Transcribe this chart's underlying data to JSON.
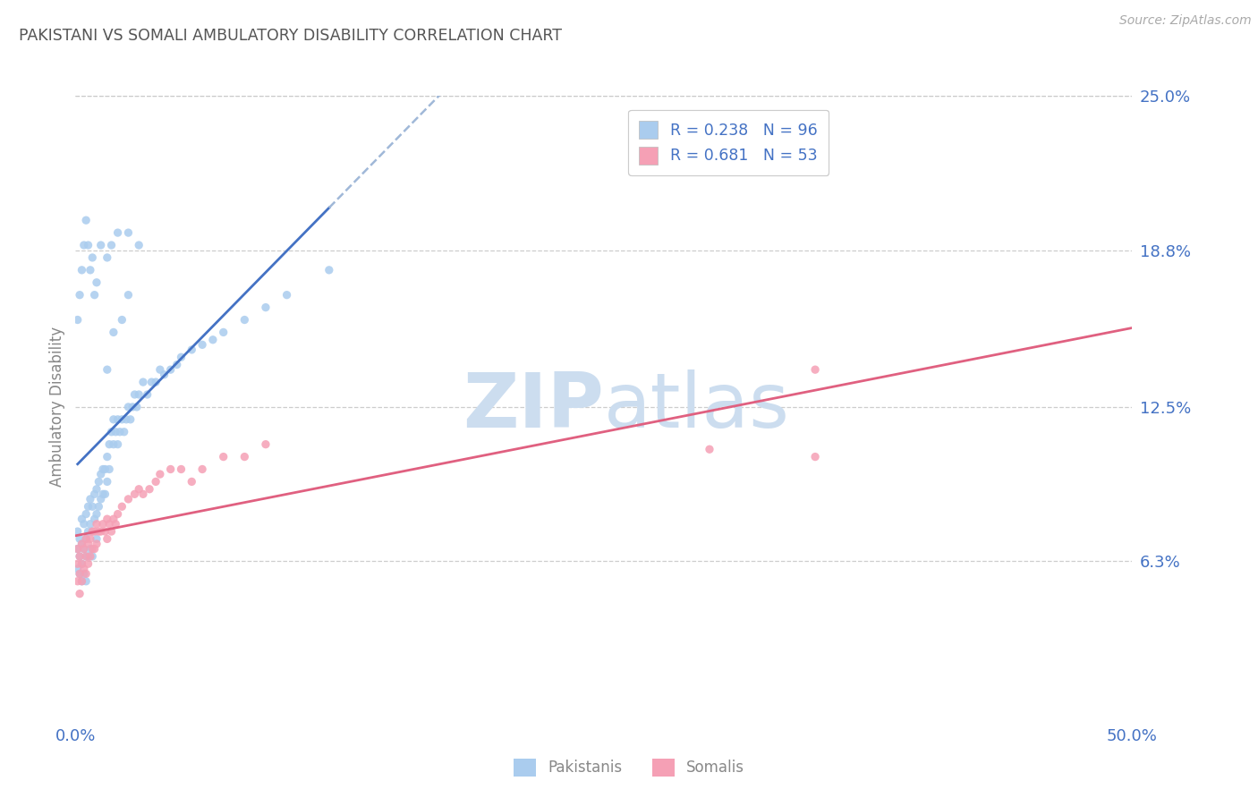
{
  "title": "PAKISTANI VS SOMALI AMBULATORY DISABILITY CORRELATION CHART",
  "source_text": "Source: ZipAtlas.com",
  "ylabel": "Ambulatory Disability",
  "xlim": [
    0.0,
    0.5
  ],
  "ylim": [
    0.0,
    0.25
  ],
  "pakistani_R": 0.238,
  "pakistani_N": 96,
  "somali_R": 0.681,
  "somali_N": 53,
  "blue_scatter_color": "#aaccee",
  "pink_scatter_color": "#f5a0b5",
  "blue_line_color": "#4472c4",
  "pink_line_color": "#e06080",
  "dashed_line_color": "#a0b8d8",
  "axis_tick_color": "#4472c4",
  "title_color": "#555555",
  "grid_color": "#c8c8c8",
  "watermark_color": "#ccddef",
  "background_color": "#ffffff",
  "pakistani_x": [
    0.001,
    0.001,
    0.001,
    0.002,
    0.002,
    0.002,
    0.003,
    0.003,
    0.003,
    0.003,
    0.004,
    0.004,
    0.004,
    0.005,
    0.005,
    0.005,
    0.005,
    0.006,
    0.006,
    0.006,
    0.007,
    0.007,
    0.007,
    0.008,
    0.008,
    0.008,
    0.009,
    0.009,
    0.01,
    0.01,
    0.01,
    0.011,
    0.011,
    0.012,
    0.012,
    0.013,
    0.013,
    0.014,
    0.014,
    0.015,
    0.015,
    0.016,
    0.016,
    0.017,
    0.018,
    0.018,
    0.019,
    0.02,
    0.02,
    0.021,
    0.022,
    0.023,
    0.024,
    0.025,
    0.026,
    0.027,
    0.028,
    0.029,
    0.03,
    0.032,
    0.034,
    0.036,
    0.038,
    0.04,
    0.042,
    0.045,
    0.048,
    0.05,
    0.055,
    0.06,
    0.065,
    0.07,
    0.08,
    0.09,
    0.1,
    0.12,
    0.015,
    0.018,
    0.022,
    0.025,
    0.001,
    0.002,
    0.003,
    0.004,
    0.005,
    0.006,
    0.007,
    0.008,
    0.009,
    0.01,
    0.012,
    0.015,
    0.017,
    0.02,
    0.025,
    0.03
  ],
  "pakistani_y": [
    0.075,
    0.068,
    0.06,
    0.072,
    0.065,
    0.058,
    0.08,
    0.07,
    0.062,
    0.055,
    0.078,
    0.068,
    0.058,
    0.082,
    0.072,
    0.065,
    0.055,
    0.085,
    0.075,
    0.065,
    0.088,
    0.078,
    0.068,
    0.085,
    0.075,
    0.065,
    0.09,
    0.08,
    0.092,
    0.082,
    0.072,
    0.095,
    0.085,
    0.098,
    0.088,
    0.1,
    0.09,
    0.1,
    0.09,
    0.105,
    0.095,
    0.11,
    0.1,
    0.115,
    0.12,
    0.11,
    0.115,
    0.12,
    0.11,
    0.115,
    0.12,
    0.115,
    0.12,
    0.125,
    0.12,
    0.125,
    0.13,
    0.125,
    0.13,
    0.135,
    0.13,
    0.135,
    0.135,
    0.14,
    0.138,
    0.14,
    0.142,
    0.145,
    0.148,
    0.15,
    0.152,
    0.155,
    0.16,
    0.165,
    0.17,
    0.18,
    0.14,
    0.155,
    0.16,
    0.17,
    0.16,
    0.17,
    0.18,
    0.19,
    0.2,
    0.19,
    0.18,
    0.185,
    0.17,
    0.175,
    0.19,
    0.185,
    0.19,
    0.195,
    0.195,
    0.19
  ],
  "somali_x": [
    0.001,
    0.001,
    0.001,
    0.002,
    0.002,
    0.002,
    0.003,
    0.003,
    0.003,
    0.004,
    0.004,
    0.005,
    0.005,
    0.005,
    0.006,
    0.006,
    0.007,
    0.007,
    0.008,
    0.008,
    0.009,
    0.009,
    0.01,
    0.01,
    0.011,
    0.012,
    0.013,
    0.014,
    0.015,
    0.015,
    0.016,
    0.017,
    0.018,
    0.019,
    0.02,
    0.022,
    0.025,
    0.028,
    0.03,
    0.032,
    0.035,
    0.038,
    0.04,
    0.045,
    0.05,
    0.055,
    0.06,
    0.07,
    0.08,
    0.09,
    0.35,
    0.35,
    0.3
  ],
  "somali_y": [
    0.068,
    0.062,
    0.055,
    0.065,
    0.058,
    0.05,
    0.07,
    0.062,
    0.055,
    0.068,
    0.06,
    0.072,
    0.065,
    0.058,
    0.07,
    0.062,
    0.072,
    0.065,
    0.075,
    0.068,
    0.075,
    0.068,
    0.078,
    0.07,
    0.075,
    0.075,
    0.078,
    0.075,
    0.08,
    0.072,
    0.078,
    0.075,
    0.08,
    0.078,
    0.082,
    0.085,
    0.088,
    0.09,
    0.092,
    0.09,
    0.092,
    0.095,
    0.098,
    0.1,
    0.1,
    0.095,
    0.1,
    0.105,
    0.105,
    0.11,
    0.14,
    0.105,
    0.108
  ]
}
